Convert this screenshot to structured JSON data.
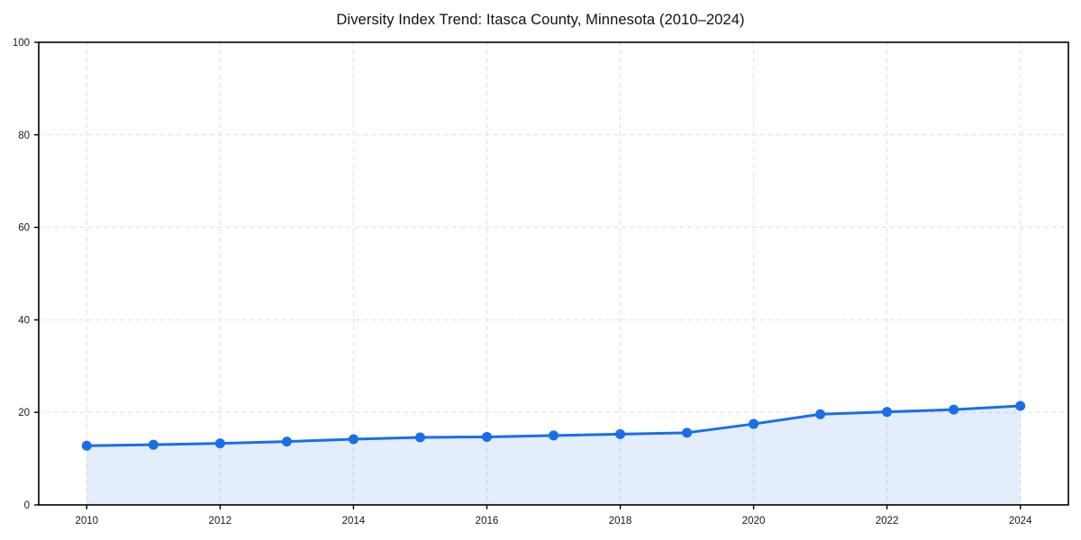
{
  "title": "Diversity Index Trend: Itasca County, Minnesota (2010–2024)",
  "colors": {
    "line": "#1a6fe8",
    "marker": "#1a6fe8",
    "area_fill": "rgba(26,111,232,0.12)",
    "grid": "#dfdfdf",
    "axis": "#000000",
    "tick_label": "#1a1a1a",
    "background": "#ffffff"
  },
  "chart_data": {
    "type": "area",
    "title": "Diversity Index Trend: Itasca County, Minnesota (2010–2024)",
    "xlabel": "",
    "ylabel": "",
    "x": [
      2010,
      2011,
      2012,
      2013,
      2014,
      2015,
      2016,
      2017,
      2018,
      2019,
      2020,
      2021,
      2022,
      2023,
      2024
    ],
    "series": [
      {
        "name": "Diversity Index",
        "values": [
          12.8,
          13.0,
          13.3,
          13.7,
          14.2,
          14.6,
          14.7,
          15.0,
          15.3,
          15.6,
          17.5,
          19.6,
          20.1,
          20.6,
          21.4
        ]
      }
    ],
    "xlim": [
      2009.28,
      2024.72
    ],
    "ylim": [
      0,
      100
    ],
    "xticks": [
      2010,
      2012,
      2014,
      2016,
      2018,
      2020,
      2022,
      2024
    ],
    "yticks": [
      0,
      20,
      40,
      60,
      80,
      100
    ],
    "grid": true,
    "grid_style": "dashed",
    "legend": false,
    "marker": "circle",
    "frame": "box"
  }
}
